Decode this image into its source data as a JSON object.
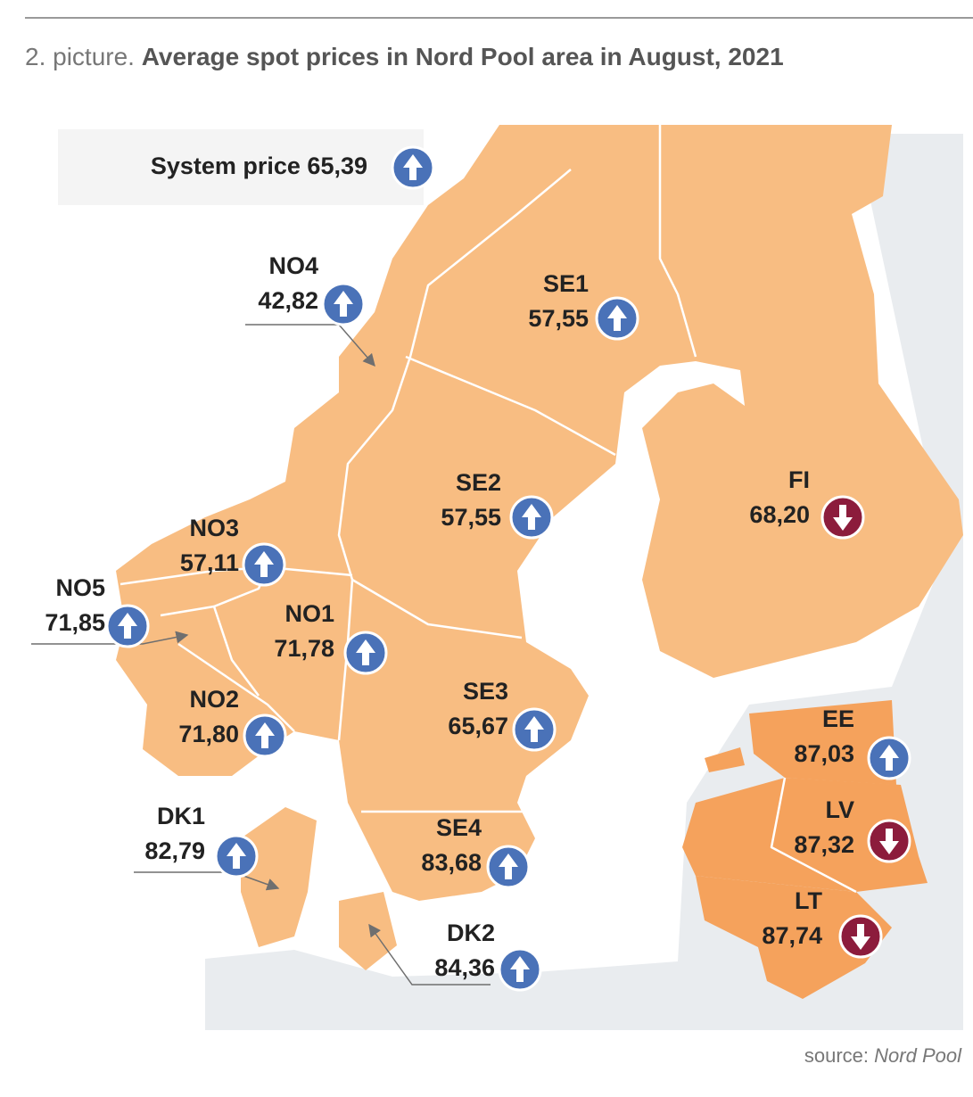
{
  "header": {
    "prefix": "2. picture.",
    "title": "Average spot prices in Nord Pool area in August, 2021"
  },
  "system_price": {
    "label": "System price",
    "value": "65,39",
    "trend": "up"
  },
  "areas": [
    {
      "name": "NO4",
      "price": "42,82",
      "trend": "up"
    },
    {
      "name": "SE1",
      "price": "57,55",
      "trend": "up"
    },
    {
      "name": "SE2",
      "price": "57,55",
      "trend": "up"
    },
    {
      "name": "FI",
      "price": "68,20",
      "trend": "down"
    },
    {
      "name": "NO3",
      "price": "57,11",
      "trend": "up"
    },
    {
      "name": "NO5",
      "price": "71,85",
      "trend": "up"
    },
    {
      "name": "NO1",
      "price": "71,78",
      "trend": "up"
    },
    {
      "name": "NO2",
      "price": "71,80",
      "trend": "up"
    },
    {
      "name": "SE3",
      "price": "65,67",
      "trend": "up"
    },
    {
      "name": "EE",
      "price": "87,03",
      "trend": "up"
    },
    {
      "name": "LV",
      "price": "87,32",
      "trend": "down"
    },
    {
      "name": "LT",
      "price": "87,74",
      "trend": "down"
    },
    {
      "name": "DK1",
      "price": "82,79",
      "trend": "up"
    },
    {
      "name": "SE4",
      "price": "83,68",
      "trend": "up"
    },
    {
      "name": "DK2",
      "price": "84,36",
      "trend": "up"
    }
  ],
  "source": {
    "prefix": "source:",
    "name": "Nord Pool"
  }
}
